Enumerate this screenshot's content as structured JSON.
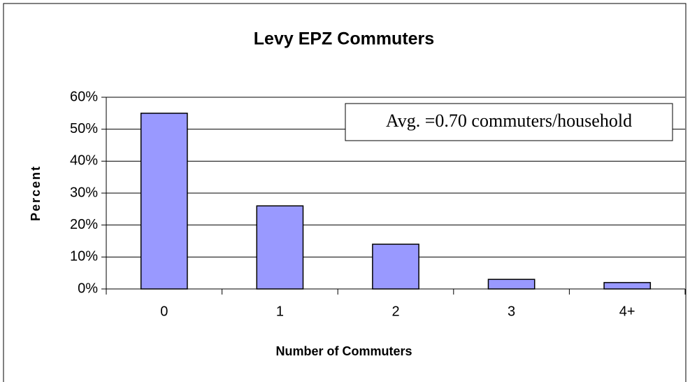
{
  "chart_data": {
    "type": "bar",
    "title": "Levy EPZ Commuters",
    "x_label": "Number of Commuters",
    "y_label": "Percent",
    "annotation": "Avg. =0.70 commuters/household",
    "categories": [
      "0",
      "1",
      "2",
      "3",
      "4+"
    ],
    "values": [
      55,
      26,
      14,
      3,
      2
    ],
    "color": "#9999ff",
    "ylim": [
      0,
      60
    ],
    "yticks": [
      {
        "value": 0,
        "label": "0%"
      },
      {
        "value": 10,
        "label": "10%"
      },
      {
        "value": 20,
        "label": "20%"
      },
      {
        "value": 30,
        "label": "30%"
      },
      {
        "value": 40,
        "label": "40%"
      },
      {
        "value": 50,
        "label": "50%"
      },
      {
        "value": 60,
        "label": "60%"
      }
    ],
    "grid": true
  }
}
